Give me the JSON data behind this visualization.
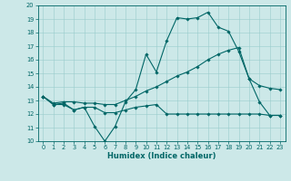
{
  "title": "",
  "xlabel": "Humidex (Indice chaleur)",
  "ylabel": "",
  "bg_color": "#cce8e8",
  "grid_color": "#99cccc",
  "line_color": "#006666",
  "spine_color": "#006666",
  "xlim": [
    -0.5,
    23.5
  ],
  "ylim": [
    10,
    20
  ],
  "xticks": [
    0,
    1,
    2,
    3,
    4,
    5,
    6,
    7,
    8,
    9,
    10,
    11,
    12,
    13,
    14,
    15,
    16,
    17,
    18,
    19,
    20,
    21,
    22,
    23
  ],
  "yticks": [
    10,
    11,
    12,
    13,
    14,
    15,
    16,
    17,
    18,
    19,
    20
  ],
  "line1_x": [
    0,
    1,
    2,
    3,
    4,
    5,
    6,
    7,
    8,
    9,
    10,
    11,
    12,
    13,
    14,
    15,
    16,
    17,
    18,
    19,
    20,
    21,
    22,
    23
  ],
  "line1_y": [
    13.3,
    12.7,
    12.7,
    12.3,
    12.5,
    11.1,
    10.0,
    11.1,
    12.9,
    13.8,
    16.4,
    15.1,
    17.4,
    19.1,
    19.0,
    19.1,
    19.5,
    18.4,
    18.1,
    16.6,
    14.6,
    12.9,
    11.9,
    11.9
  ],
  "line2_x": [
    0,
    1,
    2,
    3,
    4,
    5,
    6,
    7,
    8,
    9,
    10,
    11,
    12,
    13,
    14,
    15,
    16,
    17,
    18,
    19,
    20,
    21,
    22,
    23
  ],
  "line2_y": [
    13.3,
    12.8,
    12.9,
    12.9,
    12.8,
    12.8,
    12.7,
    12.7,
    13.0,
    13.3,
    13.7,
    14.0,
    14.4,
    14.8,
    15.1,
    15.5,
    16.0,
    16.4,
    16.7,
    16.9,
    14.6,
    14.1,
    13.9,
    13.8
  ],
  "line3_x": [
    0,
    1,
    2,
    3,
    4,
    5,
    6,
    7,
    8,
    9,
    10,
    11,
    12,
    13,
    14,
    15,
    16,
    17,
    18,
    19,
    20,
    21,
    22,
    23
  ],
  "line3_y": [
    13.3,
    12.7,
    12.8,
    12.3,
    12.5,
    12.5,
    12.1,
    12.1,
    12.3,
    12.5,
    12.6,
    12.7,
    12.0,
    12.0,
    12.0,
    12.0,
    12.0,
    12.0,
    12.0,
    12.0,
    12.0,
    12.0,
    11.9,
    11.9
  ],
  "xlabel_fontsize": 6.0,
  "tick_fontsize": 4.8,
  "marker_size": 1.8,
  "line_width": 0.8
}
